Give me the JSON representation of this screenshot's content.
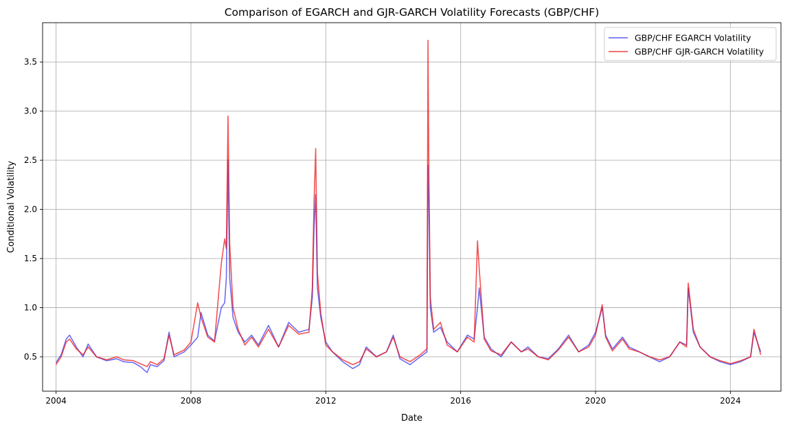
{
  "chart_data": {
    "type": "line",
    "title": "Comparison of EGARCH and GJR-GARCH Volatility Forecasts (GBP/CHF)",
    "xlabel": "Date",
    "ylabel": "Conditional Volatility",
    "xlim": [
      2003.6,
      2025.5
    ],
    "ylim": [
      0.15,
      3.9
    ],
    "grid": true,
    "legend_position": "top-right",
    "x_ticks": [
      2004,
      2008,
      2012,
      2016,
      2020,
      2024
    ],
    "x_tick_labels": [
      "2004",
      "2008",
      "2012",
      "2016",
      "2020",
      "2024"
    ],
    "y_ticks": [
      0.5,
      1.0,
      1.5,
      2.0,
      2.5,
      3.0,
      3.5
    ],
    "y_tick_labels": [
      "0.5",
      "1.0",
      "1.5",
      "2.0",
      "2.5",
      "3.0",
      "3.5"
    ],
    "series": [
      {
        "name": "GBP/CHF EGARCH Volatility",
        "color": "#3333ee",
        "x": [
          2004.0,
          2004.15,
          2004.3,
          2004.4,
          2004.6,
          2004.8,
          2004.95,
          2005.2,
          2005.5,
          2005.8,
          2006.0,
          2006.3,
          2006.5,
          2006.7,
          2006.8,
          2007.0,
          2007.2,
          2007.35,
          2007.5,
          2007.8,
          2008.0,
          2008.2,
          2008.3,
          2008.5,
          2008.7,
          2008.9,
          2009.0,
          2009.05,
          2009.1,
          2009.15,
          2009.25,
          2009.4,
          2009.6,
          2009.8,
          2010.0,
          2010.3,
          2010.6,
          2010.9,
          2011.2,
          2011.5,
          2011.6,
          2011.65,
          2011.7,
          2011.75,
          2011.85,
          2012.0,
          2012.2,
          2012.5,
          2012.8,
          2013.0,
          2013.2,
          2013.5,
          2013.8,
          2014.0,
          2014.2,
          2014.5,
          2014.8,
          2015.0,
          2015.03,
          2015.06,
          2015.1,
          2015.2,
          2015.4,
          2015.6,
          2015.9,
          2016.2,
          2016.4,
          2016.5,
          2016.55,
          2016.7,
          2016.9,
          2017.2,
          2017.5,
          2017.8,
          2018.0,
          2018.3,
          2018.6,
          2018.9,
          2019.2,
          2019.5,
          2019.8,
          2020.0,
          2020.2,
          2020.3,
          2020.5,
          2020.8,
          2021.0,
          2021.3,
          2021.6,
          2021.9,
          2022.2,
          2022.5,
          2022.7,
          2022.75,
          2022.9,
          2023.1,
          2023.4,
          2023.7,
          2024.0,
          2024.3,
          2024.6,
          2024.7,
          2024.9
        ],
        "values": [
          0.44,
          0.52,
          0.68,
          0.72,
          0.6,
          0.5,
          0.63,
          0.5,
          0.46,
          0.48,
          0.45,
          0.44,
          0.4,
          0.34,
          0.42,
          0.4,
          0.46,
          0.75,
          0.5,
          0.55,
          0.62,
          0.7,
          0.95,
          0.72,
          0.66,
          1.0,
          1.05,
          1.3,
          2.5,
          1.3,
          0.9,
          0.75,
          0.65,
          0.72,
          0.62,
          0.82,
          0.6,
          0.85,
          0.75,
          0.78,
          1.1,
          1.8,
          2.15,
          1.2,
          0.9,
          0.65,
          0.55,
          0.45,
          0.38,
          0.42,
          0.6,
          0.5,
          0.55,
          0.72,
          0.48,
          0.42,
          0.5,
          0.55,
          2.45,
          2.05,
          1.0,
          0.75,
          0.8,
          0.65,
          0.55,
          0.72,
          0.68,
          1.0,
          1.2,
          0.7,
          0.58,
          0.5,
          0.65,
          0.55,
          0.6,
          0.5,
          0.48,
          0.58,
          0.72,
          0.55,
          0.62,
          0.75,
          1.0,
          0.72,
          0.58,
          0.7,
          0.6,
          0.55,
          0.5,
          0.45,
          0.5,
          0.65,
          0.62,
          1.2,
          0.75,
          0.6,
          0.5,
          0.45,
          0.42,
          0.45,
          0.5,
          0.75,
          0.55
        ]
      },
      {
        "name": "GBP/CHF GJR-GARCH Volatility",
        "color": "#ee1111",
        "x": [
          2004.0,
          2004.15,
          2004.3,
          2004.4,
          2004.6,
          2004.8,
          2004.95,
          2005.2,
          2005.5,
          2005.8,
          2006.0,
          2006.3,
          2006.5,
          2006.7,
          2006.8,
          2007.0,
          2007.2,
          2007.35,
          2007.5,
          2007.8,
          2008.0,
          2008.2,
          2008.3,
          2008.5,
          2008.7,
          2008.9,
          2009.0,
          2009.05,
          2009.1,
          2009.15,
          2009.25,
          2009.4,
          2009.6,
          2009.8,
          2010.0,
          2010.3,
          2010.6,
          2010.9,
          2011.2,
          2011.5,
          2011.6,
          2011.65,
          2011.7,
          2011.75,
          2011.85,
          2012.0,
          2012.2,
          2012.5,
          2012.8,
          2013.0,
          2013.2,
          2013.5,
          2013.8,
          2014.0,
          2014.2,
          2014.5,
          2014.8,
          2015.0,
          2015.03,
          2015.06,
          2015.1,
          2015.2,
          2015.4,
          2015.6,
          2015.9,
          2016.2,
          2016.4,
          2016.5,
          2016.55,
          2016.7,
          2016.9,
          2017.2,
          2017.5,
          2017.8,
          2018.0,
          2018.3,
          2018.6,
          2018.9,
          2019.2,
          2019.5,
          2019.8,
          2020.0,
          2020.2,
          2020.3,
          2020.5,
          2020.8,
          2021.0,
          2021.3,
          2021.6,
          2021.9,
          2022.2,
          2022.5,
          2022.7,
          2022.75,
          2022.9,
          2023.1,
          2023.4,
          2023.7,
          2024.0,
          2024.3,
          2024.6,
          2024.7,
          2024.9
        ],
        "values": [
          0.42,
          0.5,
          0.65,
          0.68,
          0.58,
          0.52,
          0.6,
          0.5,
          0.47,
          0.5,
          0.47,
          0.46,
          0.43,
          0.4,
          0.45,
          0.42,
          0.48,
          0.72,
          0.52,
          0.57,
          0.65,
          1.05,
          0.9,
          0.7,
          0.65,
          1.45,
          1.7,
          1.6,
          2.95,
          1.65,
          1.0,
          0.78,
          0.62,
          0.7,
          0.6,
          0.78,
          0.6,
          0.82,
          0.73,
          0.75,
          1.2,
          2.05,
          2.62,
          1.35,
          0.95,
          0.62,
          0.55,
          0.47,
          0.42,
          0.45,
          0.58,
          0.5,
          0.55,
          0.7,
          0.5,
          0.45,
          0.52,
          0.58,
          3.72,
          2.3,
          1.1,
          0.78,
          0.85,
          0.62,
          0.55,
          0.7,
          0.65,
          1.68,
          1.4,
          0.68,
          0.56,
          0.52,
          0.65,
          0.55,
          0.58,
          0.5,
          0.47,
          0.57,
          0.7,
          0.55,
          0.6,
          0.72,
          1.03,
          0.7,
          0.56,
          0.68,
          0.58,
          0.55,
          0.5,
          0.47,
          0.5,
          0.65,
          0.6,
          1.25,
          0.78,
          0.6,
          0.5,
          0.46,
          0.43,
          0.46,
          0.5,
          0.78,
          0.52
        ]
      }
    ]
  }
}
